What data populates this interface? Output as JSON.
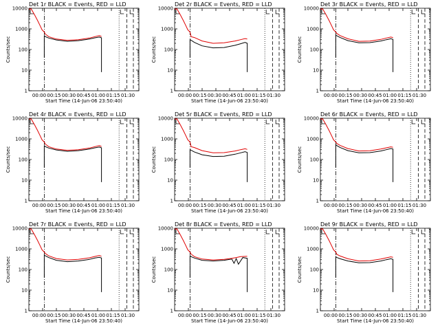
{
  "figure": {
    "xlabel": "Start Time (14-Jun-06 23:50:40)",
    "ylabel": "Counts/sec",
    "x_tick_labels": [
      "00:00",
      "00:15",
      "00:30",
      "00:45",
      "01:00",
      "01:15",
      "01:30"
    ],
    "y_tick_labels": [
      "1",
      "10",
      "100",
      "1000",
      "10000"
    ],
    "series_names": [
      "Events",
      "LLD"
    ],
    "colors": {
      "events": "#000000",
      "lld": "#e00000"
    }
  },
  "chart_data": [
    {
      "type": "line",
      "title": "Det 1r BLACK = Events, RED = LLD",
      "xlabel": "Start Time (14-Jun-06 23:50:40)",
      "ylabel": "Counts/sec",
      "log_y": true,
      "ylim": [
        1,
        10000
      ],
      "xlim_min": [
        0,
        100
      ],
      "series": [
        {
          "name": "Events",
          "x": [
            14,
            15,
            18,
            25,
            35,
            45,
            55,
            60,
            64,
            66
          ],
          "values": [
            480,
            420,
            360,
            290,
            250,
            270,
            320,
            370,
            400,
            370
          ]
        },
        {
          "name": "LLD",
          "x": [
            0,
            2,
            5,
            8,
            10,
            12,
            14,
            15,
            18,
            25,
            35,
            45,
            55,
            60,
            64,
            66
          ],
          "values": [
            9000,
            9500,
            5000,
            2500,
            1500,
            900,
            700,
            560,
            420,
            320,
            280,
            300,
            360,
            420,
            470,
            430
          ]
        }
      ]
    },
    {
      "type": "line",
      "title": "Det 2r BLACK = Events, RED = LLD",
      "xlabel": "Start Time (14-Jun-06 23:50:40)",
      "ylabel": "Counts/sec",
      "log_y": true,
      "ylim": [
        1,
        10000
      ],
      "xlim_min": [
        0,
        100
      ],
      "series": [
        {
          "name": "Events",
          "x": [
            14,
            15,
            18,
            25,
            35,
            45,
            55,
            60,
            64,
            66
          ],
          "values": [
            300,
            280,
            220,
            150,
            120,
            125,
            160,
            190,
            220,
            200
          ]
        },
        {
          "name": "LLD",
          "x": [
            0,
            2,
            5,
            8,
            10,
            12,
            14,
            15,
            18,
            25,
            35,
            45,
            55,
            60,
            64,
            66
          ],
          "values": [
            9000,
            9500,
            5000,
            2500,
            1500,
            900,
            700,
            420,
            380,
            260,
            200,
            210,
            260,
            300,
            340,
            320
          ]
        }
      ]
    },
    {
      "type": "line",
      "title": "Det 3r BLACK = Events, RED = LLD",
      "xlabel": "Start Time (14-Jun-06 23:50:40)",
      "ylabel": "Counts/sec",
      "log_y": true,
      "ylim": [
        1,
        10000
      ],
      "xlim_min": [
        0,
        100
      ],
      "series": [
        {
          "name": "Events",
          "x": [
            14,
            15,
            18,
            25,
            35,
            45,
            55,
            60,
            64,
            66
          ],
          "values": [
            500,
            460,
            380,
            270,
            210,
            215,
            260,
            300,
            330,
            310
          ]
        },
        {
          "name": "LLD",
          "x": [
            0,
            2,
            5,
            8,
            10,
            12,
            14,
            15,
            18,
            25,
            35,
            45,
            55,
            60,
            64,
            66
          ],
          "values": [
            9000,
            9500,
            5000,
            2500,
            1500,
            900,
            700,
            600,
            470,
            330,
            250,
            255,
            310,
            360,
            400,
            380
          ]
        }
      ]
    },
    {
      "type": "line",
      "title": "Det 4r BLACK = Events, RED = LLD",
      "xlabel": "Start Time (14-Jun-06 23:50:40)",
      "ylabel": "Counts/sec",
      "log_y": true,
      "ylim": [
        1,
        10000
      ],
      "xlim_min": [
        0,
        100
      ],
      "series": [
        {
          "name": "Events",
          "x": [
            14,
            15,
            18,
            25,
            35,
            45,
            55,
            60,
            64,
            66
          ],
          "values": [
            480,
            420,
            360,
            290,
            250,
            270,
            320,
            370,
            400,
            370
          ]
        },
        {
          "name": "LLD",
          "x": [
            0,
            2,
            5,
            8,
            10,
            12,
            14,
            15,
            18,
            25,
            35,
            45,
            55,
            60,
            64,
            66
          ],
          "values": [
            9000,
            9500,
            5000,
            2500,
            1500,
            900,
            700,
            560,
            420,
            320,
            280,
            300,
            360,
            420,
            470,
            430
          ]
        }
      ]
    },
    {
      "type": "line",
      "title": "Det 5r BLACK = Events, RED = LLD",
      "xlabel": "Start Time (14-Jun-06 23:50:40)",
      "ylabel": "Counts/sec",
      "log_y": true,
      "ylim": [
        1,
        10000
      ],
      "xlim_min": [
        0,
        100
      ],
      "series": [
        {
          "name": "Events",
          "x": [
            14,
            15,
            18,
            25,
            35,
            45,
            55,
            60,
            64,
            66
          ],
          "values": [
            300,
            280,
            230,
            170,
            140,
            145,
            180,
            210,
            240,
            220
          ]
        },
        {
          "name": "LLD",
          "x": [
            0,
            2,
            5,
            8,
            10,
            12,
            14,
            15,
            18,
            25,
            35,
            45,
            55,
            60,
            64,
            66
          ],
          "values": [
            9000,
            9500,
            5000,
            2500,
            1500,
            900,
            700,
            420,
            380,
            270,
            210,
            215,
            260,
            300,
            330,
            310
          ]
        }
      ]
    },
    {
      "type": "line",
      "title": "Det 6r BLACK = Events, RED = LLD",
      "xlabel": "Start Time (14-Jun-06 23:50:40)",
      "ylabel": "Counts/sec",
      "log_y": true,
      "ylim": [
        1,
        10000
      ],
      "xlim_min": [
        0,
        100
      ],
      "series": [
        {
          "name": "Events",
          "x": [
            14,
            15,
            18,
            25,
            35,
            45,
            55,
            60,
            64,
            66
          ],
          "values": [
            520,
            470,
            380,
            270,
            210,
            215,
            260,
            300,
            340,
            320
          ]
        },
        {
          "name": "LLD",
          "x": [
            0,
            2,
            5,
            8,
            10,
            12,
            14,
            15,
            18,
            25,
            35,
            45,
            55,
            60,
            64,
            66
          ],
          "values": [
            9000,
            9500,
            5000,
            2500,
            1500,
            900,
            700,
            600,
            480,
            340,
            260,
            265,
            320,
            370,
            410,
            390
          ]
        }
      ]
    },
    {
      "type": "line",
      "title": "Det 7r BLACK = Events, RED = LLD",
      "xlabel": "Start Time (14-Jun-06 23:50:40)",
      "ylabel": "Counts/sec",
      "log_y": true,
      "ylim": [
        1,
        10000
      ],
      "xlim_min": [
        0,
        100
      ],
      "series": [
        {
          "name": "Events",
          "x": [
            14,
            15,
            18,
            25,
            35,
            45,
            55,
            60,
            64,
            66
          ],
          "values": [
            500,
            460,
            380,
            280,
            240,
            260,
            310,
            360,
            390,
            360
          ]
        },
        {
          "name": "LLD",
          "x": [
            0,
            2,
            5,
            8,
            10,
            12,
            14,
            15,
            18,
            25,
            35,
            45,
            55,
            60,
            64,
            66
          ],
          "values": [
            9000,
            9500,
            5000,
            2500,
            1500,
            900,
            700,
            600,
            460,
            340,
            290,
            310,
            370,
            430,
            480,
            440
          ]
        }
      ]
    },
    {
      "type": "line",
      "title": "Det 8r BLACK = Events, RED = LLD",
      "xlabel": "Start Time (14-Jun-06 23:50:40)",
      "ylabel": "Counts/sec",
      "log_y": true,
      "ylim": [
        1,
        10000
      ],
      "xlim_min": [
        0,
        100
      ],
      "series": [
        {
          "name": "Events",
          "x": [
            14,
            15,
            18,
            25,
            35,
            45,
            52,
            54,
            56,
            58,
            62,
            66
          ],
          "values": [
            480,
            420,
            360,
            280,
            260,
            280,
            320,
            200,
            340,
            180,
            380,
            350
          ]
        },
        {
          "name": "LLD",
          "x": [
            0,
            2,
            5,
            8,
            10,
            12,
            14,
            15,
            18,
            25,
            35,
            45,
            52,
            56,
            60,
            66
          ],
          "values": [
            9000,
            9500,
            5000,
            2500,
            1500,
            900,
            700,
            560,
            420,
            320,
            290,
            310,
            350,
            380,
            420,
            440
          ]
        }
      ]
    },
    {
      "type": "line",
      "title": "Det 9r BLACK = Events, RED = LLD",
      "xlabel": "Start Time (14-Jun-06 23:50:40)",
      "ylabel": "Counts/sec",
      "log_y": true,
      "ylim": [
        1,
        10000
      ],
      "xlim_min": [
        0,
        100
      ],
      "series": [
        {
          "name": "Events",
          "x": [
            14,
            15,
            18,
            25,
            35,
            45,
            55,
            60,
            64,
            66
          ],
          "values": [
            420,
            380,
            330,
            260,
            210,
            215,
            260,
            300,
            330,
            310
          ]
        },
        {
          "name": "LLD",
          "x": [
            0,
            2,
            5,
            8,
            10,
            12,
            14,
            15,
            18,
            25,
            35,
            45,
            55,
            60,
            64,
            66
          ],
          "values": [
            9000,
            9500,
            5000,
            2500,
            1500,
            900,
            700,
            540,
            450,
            330,
            260,
            265,
            320,
            370,
            410,
            390
          ]
        }
      ]
    }
  ]
}
